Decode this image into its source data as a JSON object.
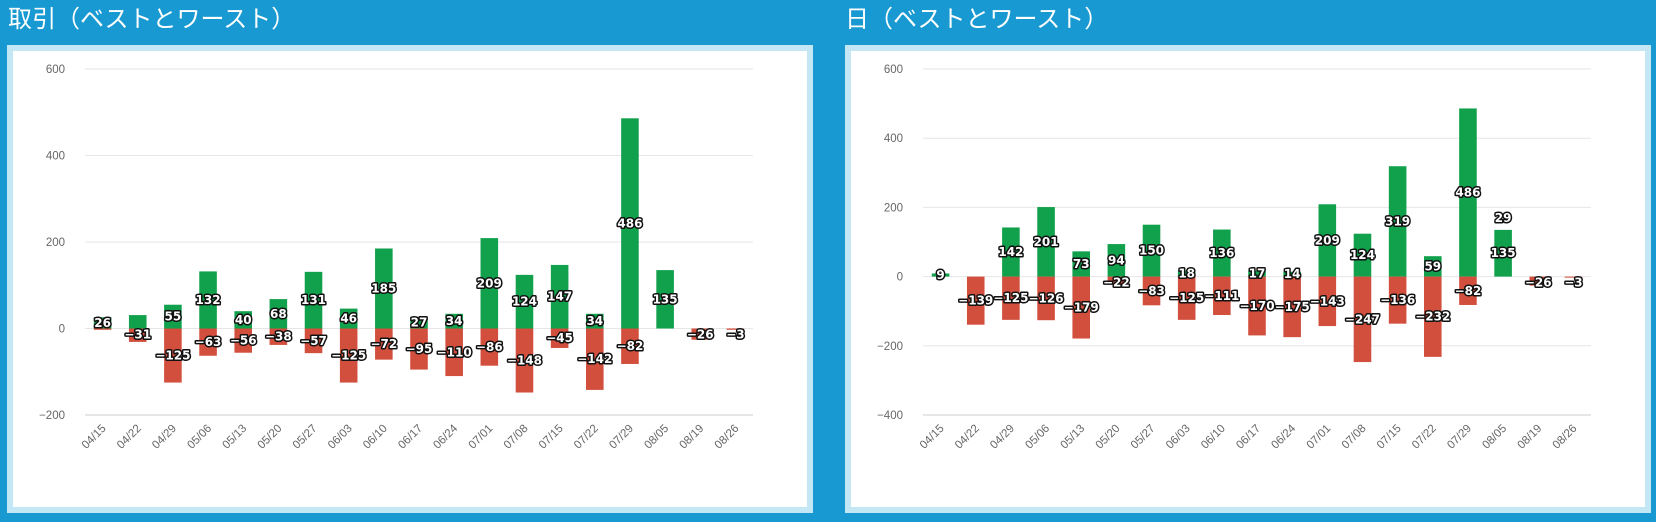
{
  "panels": [
    {
      "title": "取引（ベストとワースト）"
    },
    {
      "title": "日（ベストとワースト）"
    }
  ],
  "colors": {
    "positive": "#11a04b",
    "negative": "#d24f3e",
    "axis": "#cccccc",
    "grid": "#e6e6e6"
  },
  "chart_data": [
    {
      "type": "bar",
      "title": "取引（ベストとワースト）",
      "categories": [
        "04/15",
        "04/22",
        "04/29",
        "05/06",
        "05/13",
        "05/20",
        "05/27",
        "06/03",
        "06/10",
        "06/17",
        "06/24",
        "07/01",
        "07/08",
        "07/15",
        "07/22",
        "07/29",
        "08/05",
        "08/19",
        "08/26"
      ],
      "series": [
        {
          "values": [
            26,
            31,
            55,
            132,
            40,
            68,
            131,
            46,
            185,
            27,
            34,
            209,
            124,
            147,
            34,
            486,
            135,
            null,
            null
          ],
          "labels": [
            "26",
            "",
            "55",
            "132",
            "40",
            "68",
            "131",
            "46",
            "185",
            "27",
            "34",
            "209",
            "124",
            "147",
            "34",
            "486",
            "135",
            "",
            ""
          ]
        },
        {
          "values": [
            -3,
            -31,
            -125,
            -63,
            -56,
            -38,
            -57,
            -125,
            -72,
            -95,
            -110,
            -86,
            -148,
            -45,
            -142,
            -82,
            null,
            -26,
            -3
          ],
          "labels": [
            "",
            "-31",
            "-125",
            "-63",
            "-56",
            "-38",
            "-57",
            "-125",
            "-72",
            "-95",
            "-110",
            "-86",
            "-148",
            "-45",
            "-142",
            "-82",
            "",
            "-26",
            "-3"
          ]
        }
      ],
      "ylim": [
        -200,
        600
      ],
      "yticks": [
        -200,
        0,
        200,
        400,
        600
      ],
      "grid": true,
      "stacked": true
    },
    {
      "type": "bar",
      "title": "日（ベストとワースト）",
      "categories": [
        "04/15",
        "04/22",
        "04/29",
        "05/06",
        "05/13",
        "05/20",
        "05/27",
        "06/03",
        "06/10",
        "06/17",
        "06/24",
        "07/01",
        "07/08",
        "07/15",
        "07/22",
        "07/29",
        "08/05",
        "08/19",
        "08/26"
      ],
      "series": [
        {
          "values": [
            9,
            null,
            142,
            201,
            73,
            94,
            150,
            18,
            136,
            17,
            14,
            209,
            124,
            319,
            59,
            486,
            135,
            null,
            null
          ],
          "labels": [
            "9",
            "",
            "142",
            "201",
            "73",
            "94",
            "150",
            "18",
            "136",
            "17",
            "14",
            "209",
            "124",
            "319",
            "59",
            "486",
            "135,29",
            "",
            ""
          ]
        },
        {
          "values": [
            null,
            -139,
            -125,
            -126,
            -179,
            -22,
            -83,
            -125,
            -111,
            -170,
            -175,
            -143,
            -247,
            -136,
            -232,
            -82,
            null,
            -26,
            -3
          ],
          "labels": [
            "",
            "-139",
            "-125",
            "-126",
            "-179",
            "-22",
            "-83",
            "-125",
            "-111",
            "-170",
            "-175",
            "-143",
            "-247",
            "-136",
            "-232",
            "-82",
            "",
            "-26",
            "-3"
          ]
        }
      ],
      "ylim": [
        -400,
        600
      ],
      "yticks": [
        -400,
        -200,
        0,
        200,
        400,
        600
      ],
      "grid": true,
      "stacked": true
    }
  ]
}
